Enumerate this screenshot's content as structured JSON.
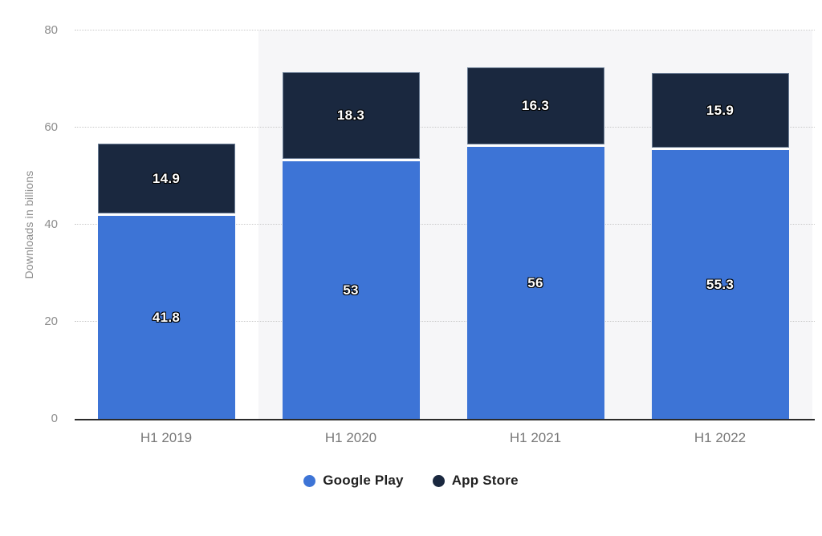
{
  "chart_data": {
    "type": "bar",
    "stacked": true,
    "title": "",
    "xlabel": "",
    "ylabel": "Downloads in billions",
    "ylim": [
      0,
      80
    ],
    "yticks": [
      0,
      20,
      40,
      60,
      80
    ],
    "grid": "horizontal-dotted",
    "legend_position": "bottom",
    "categories": [
      "H1 2019",
      "H1 2020",
      "H1 2021",
      "H1 2022"
    ],
    "series": [
      {
        "name": "Google Play",
        "color": "#3d74d6",
        "values": [
          41.8,
          53,
          56,
          55.3
        ]
      },
      {
        "name": "App Store",
        "color": "#1a283f",
        "values": [
          14.9,
          18.3,
          16.3,
          15.9
        ]
      }
    ],
    "highlight_bands": [
      false,
      true,
      true,
      true
    ]
  },
  "colors": {
    "background": "#ffffff",
    "band": "#f6f6f8",
    "gridline": "#c9c9c9",
    "axis_line": "#2b2b2b",
    "tick_label": "#8d8d8d",
    "x_label": "#787878",
    "y_title": "#8e8e8e",
    "value_label": "#ffffff",
    "legend_text": "#1f1f1f"
  }
}
